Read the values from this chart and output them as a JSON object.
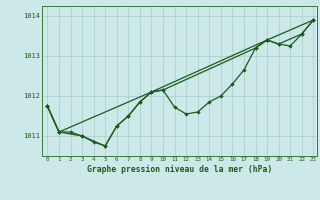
{
  "title": "Graphe pression niveau de la mer (hPa)",
  "bg_color": "#cce8e8",
  "grid_color": "#aacccc",
  "line_color": "#1a5c1a",
  "x_min": -0.5,
  "x_max": 23.3,
  "y_min": 1010.5,
  "y_max": 1014.25,
  "yticks": [
    1011,
    1012,
    1013,
    1014
  ],
  "xticks": [
    0,
    1,
    2,
    3,
    4,
    5,
    6,
    7,
    8,
    9,
    10,
    11,
    12,
    13,
    14,
    15,
    16,
    17,
    18,
    19,
    20,
    21,
    22,
    23
  ],
  "y_main": [
    1011.75,
    1011.1,
    1011.1,
    1011.0,
    1010.85,
    1010.75,
    1011.25,
    1011.5,
    1011.85,
    1012.1,
    1012.15,
    1011.72,
    1011.55,
    1011.6,
    1011.85,
    1012.0,
    1012.3,
    1012.65,
    1013.2,
    1013.4,
    1013.3,
    1013.25,
    1013.55,
    1013.9
  ],
  "y_line2_x": [
    0,
    1,
    3,
    5,
    6,
    7,
    8,
    9,
    10,
    18,
    19,
    20,
    22,
    23
  ],
  "y_line2_y": [
    1011.75,
    1011.1,
    1011.0,
    1010.75,
    1011.25,
    1011.5,
    1011.85,
    1012.1,
    1012.15,
    1013.2,
    1013.4,
    1013.3,
    1013.55,
    1013.9
  ],
  "y_line3_x": [
    0,
    1,
    9,
    19,
    23
  ],
  "y_line3_y": [
    1011.75,
    1011.1,
    1012.1,
    1013.4,
    1013.9
  ]
}
